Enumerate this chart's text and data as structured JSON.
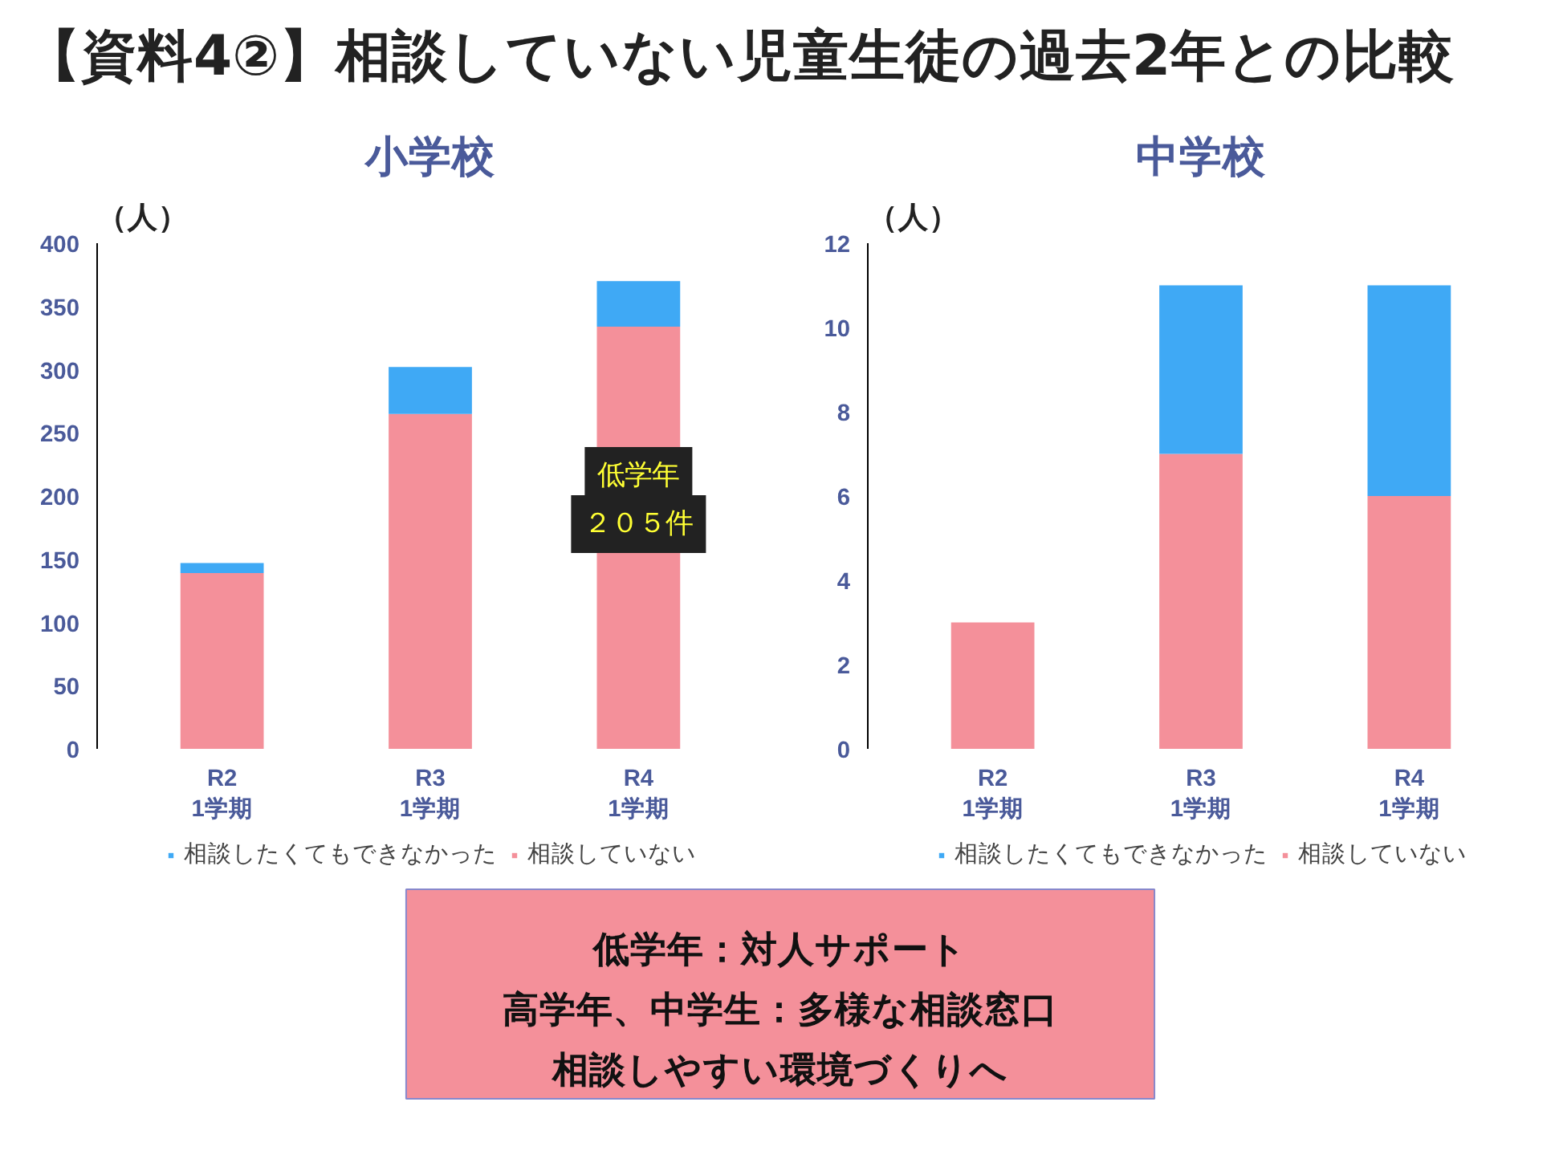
{
  "chart_data": [
    {
      "type": "other",
      "title": "【資料4②】相談していない児童生徒の過去2年との比較",
      "annotations": [
        "低学年：対人サポート",
        "高学年、中学生：多様な相談窓口",
        "相談しやすい環境づくりへ"
      ]
    },
    {
      "type": "bar",
      "title": "小学校",
      "ylabel": "（人）",
      "stacked": true,
      "categories": [
        "R2\n1学期",
        "R3\n1学期",
        "R4\n1学期"
      ],
      "series": [
        {
          "name": "相談していない",
          "color": "#f4909a",
          "values": [
            139,
            265,
            334
          ]
        },
        {
          "name": "相談したくてもできなかった",
          "color": "#3fa9f5",
          "values": [
            8,
            37,
            36
          ]
        }
      ],
      "ylim": [
        0,
        400
      ],
      "yticks": [
        0,
        50,
        100,
        150,
        200,
        250,
        300,
        350,
        400
      ],
      "grid": false,
      "legend": "bottom",
      "annotations": [
        "低学年",
        "２０５件"
      ]
    },
    {
      "type": "bar",
      "title": "中学校",
      "ylabel": "（人）",
      "stacked": true,
      "categories": [
        "R2\n1学期",
        "R3\n1学期",
        "R4\n1学期"
      ],
      "series": [
        {
          "name": "相談していない",
          "color": "#f4909a",
          "values": [
            3,
            7,
            6
          ]
        },
        {
          "name": "相談したくてもできなかった",
          "color": "#3fa9f5",
          "values": [
            0,
            4,
            5
          ]
        }
      ],
      "ylim": [
        0,
        12
      ],
      "yticks": [
        0,
        2,
        4,
        6,
        8,
        10,
        12
      ],
      "grid": false,
      "legend": "bottom"
    }
  ]
}
